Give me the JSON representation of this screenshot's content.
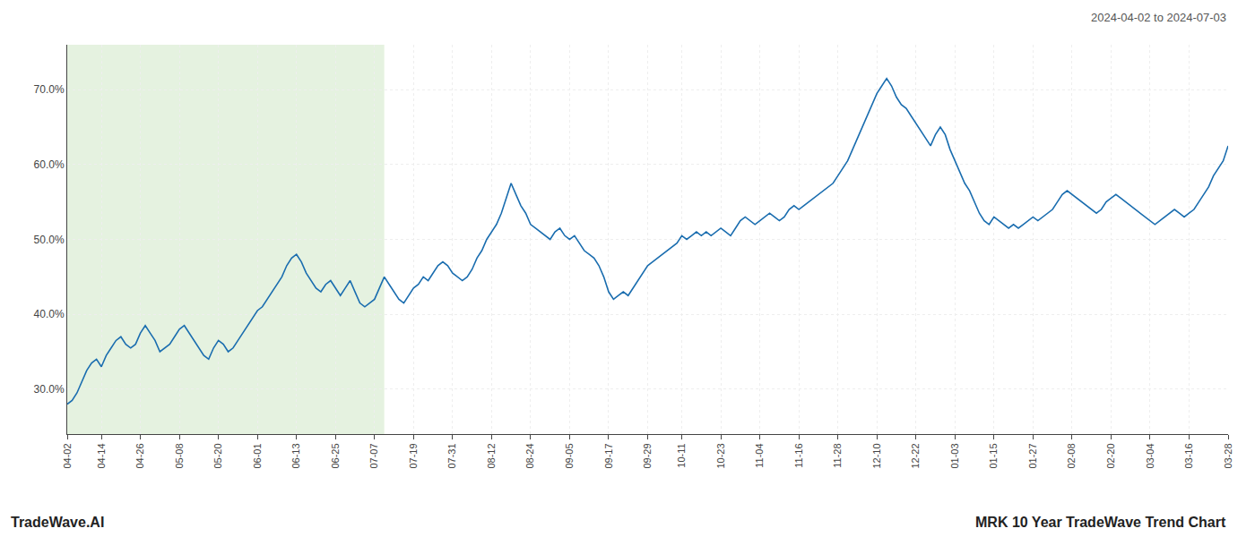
{
  "chart_data": {
    "type": "line",
    "annotations": [
      "2024-04-02 to 2024-07-03",
      "TradeWave.AI",
      "MRK 10 Year TradeWave Trend Chart"
    ],
    "color": "#1a6daf",
    "grid": true,
    "ylim": [
      24,
      76
    ],
    "yticks": [
      {
        "value": 30,
        "label": "30.0%"
      },
      {
        "value": 40,
        "label": "40.0%"
      },
      {
        "value": 50,
        "label": "50.0%"
      },
      {
        "value": 60,
        "label": "60.0%"
      },
      {
        "value": 70,
        "label": "70.0%"
      }
    ],
    "span": {
      "x": [
        0,
        65
      ],
      "color": "#d4eacc"
    },
    "categories": [
      "04-02",
      null,
      null,
      null,
      null,
      null,
      null,
      "04-14",
      null,
      null,
      null,
      null,
      null,
      null,
      null,
      "04-26",
      null,
      null,
      null,
      null,
      null,
      null,
      null,
      "05-08",
      null,
      null,
      null,
      null,
      null,
      null,
      null,
      "05-20",
      null,
      null,
      null,
      null,
      null,
      null,
      null,
      "06-01",
      null,
      null,
      null,
      null,
      null,
      null,
      null,
      "06-13",
      null,
      null,
      null,
      null,
      null,
      null,
      null,
      "06-25",
      null,
      null,
      null,
      null,
      null,
      null,
      null,
      "07-07",
      null,
      null,
      null,
      null,
      null,
      null,
      null,
      "07-19",
      null,
      null,
      null,
      null,
      null,
      null,
      null,
      "07-31",
      null,
      null,
      null,
      null,
      null,
      null,
      null,
      "08-12",
      null,
      null,
      null,
      null,
      null,
      null,
      null,
      "08-24",
      null,
      null,
      null,
      null,
      null,
      null,
      null,
      "09-05",
      null,
      null,
      null,
      null,
      null,
      null,
      null,
      "09-17",
      null,
      null,
      null,
      null,
      null,
      null,
      null,
      "09-29",
      null,
      null,
      null,
      null,
      null,
      null,
      "10-11",
      null,
      null,
      null,
      null,
      null,
      null,
      null,
      "10-23",
      null,
      null,
      null,
      null,
      null,
      null,
      null,
      "11-04",
      null,
      null,
      null,
      null,
      null,
      null,
      null,
      "11-16",
      null,
      null,
      null,
      null,
      null,
      null,
      null,
      "11-28",
      null,
      null,
      null,
      null,
      null,
      null,
      null,
      "12-10",
      null,
      null,
      null,
      null,
      null,
      null,
      null,
      "12-22",
      null,
      null,
      null,
      null,
      null,
      null,
      null,
      "01-03",
      null,
      null,
      null,
      null,
      null,
      null,
      null,
      "01-15",
      null,
      null,
      null,
      null,
      null,
      null,
      null,
      "01-27",
      null,
      null,
      null,
      null,
      null,
      null,
      null,
      "02-08",
      null,
      null,
      null,
      null,
      null,
      null,
      null,
      "02-20",
      null,
      null,
      null,
      null,
      null,
      null,
      null,
      "03-04",
      null,
      null,
      null,
      null,
      null,
      null,
      null,
      "03-16",
      null,
      null,
      null,
      null,
      null,
      null,
      null,
      "03-28"
    ],
    "values": [
      28.0,
      28.5,
      29.5,
      31.0,
      32.5,
      33.5,
      34.0,
      33.0,
      34.5,
      35.5,
      36.5,
      37.0,
      36.0,
      35.5,
      36.0,
      37.5,
      38.5,
      37.5,
      36.5,
      35.0,
      35.5,
      36.0,
      37.0,
      38.0,
      38.5,
      37.5,
      36.5,
      35.5,
      34.5,
      34.0,
      35.5,
      36.5,
      36.0,
      35.0,
      35.5,
      36.5,
      37.5,
      38.5,
      39.5,
      40.5,
      41.0,
      42.0,
      43.0,
      44.0,
      45.0,
      46.5,
      47.5,
      48.0,
      47.0,
      45.5,
      44.5,
      43.5,
      43.0,
      44.0,
      44.5,
      43.5,
      42.5,
      43.5,
      44.5,
      43.0,
      41.5,
      41.0,
      41.5,
      42.0,
      43.5,
      45.0,
      44.0,
      43.0,
      42.0,
      41.5,
      42.5,
      43.5,
      44.0,
      45.0,
      44.5,
      45.5,
      46.5,
      47.0,
      46.5,
      45.5,
      45.0,
      44.5,
      45.0,
      46.0,
      47.5,
      48.5,
      50.0,
      51.0,
      52.0,
      53.5,
      55.5,
      57.5,
      56.0,
      54.5,
      53.5,
      52.0,
      51.5,
      51.0,
      50.5,
      50.0,
      51.0,
      51.5,
      50.5,
      50.0,
      50.5,
      49.5,
      48.5,
      48.0,
      47.5,
      46.5,
      45.0,
      43.0,
      42.0,
      42.5,
      43.0,
      42.5,
      43.5,
      44.5,
      45.5,
      46.5,
      47.0,
      47.5,
      48.0,
      48.5,
      49.0,
      49.5,
      50.5,
      50.0,
      50.5,
      51.0,
      50.5,
      51.0,
      50.5,
      51.0,
      51.5,
      51.0,
      50.5,
      51.5,
      52.5,
      53.0,
      52.5,
      52.0,
      52.5,
      53.0,
      53.5,
      53.0,
      52.5,
      53.0,
      54.0,
      54.5,
      54.0,
      54.5,
      55.0,
      55.5,
      56.0,
      56.5,
      57.0,
      57.5,
      58.5,
      59.5,
      60.5,
      62.0,
      63.5,
      65.0,
      66.5,
      68.0,
      69.5,
      70.5,
      71.5,
      70.5,
      69.0,
      68.0,
      67.5,
      66.5,
      65.5,
      64.5,
      63.5,
      62.5,
      64.0,
      65.0,
      64.0,
      62.0,
      60.5,
      59.0,
      57.5,
      56.5,
      55.0,
      53.5,
      52.5,
      52.0,
      53.0,
      52.5,
      52.0,
      51.5,
      52.0,
      51.5,
      52.0,
      52.5,
      53.0,
      52.5,
      53.0,
      53.5,
      54.0,
      55.0,
      56.0,
      56.5,
      56.0,
      55.5,
      55.0,
      54.5,
      54.0,
      53.5,
      54.0,
      55.0,
      55.5,
      56.0,
      55.5,
      55.0,
      54.5,
      54.0,
      53.5,
      53.0,
      52.5,
      52.0,
      52.5,
      53.0,
      53.5,
      54.0,
      53.5,
      53.0,
      53.5,
      54.0,
      55.0,
      56.0,
      57.0,
      58.5,
      59.5,
      60.5,
      62.5
    ]
  }
}
